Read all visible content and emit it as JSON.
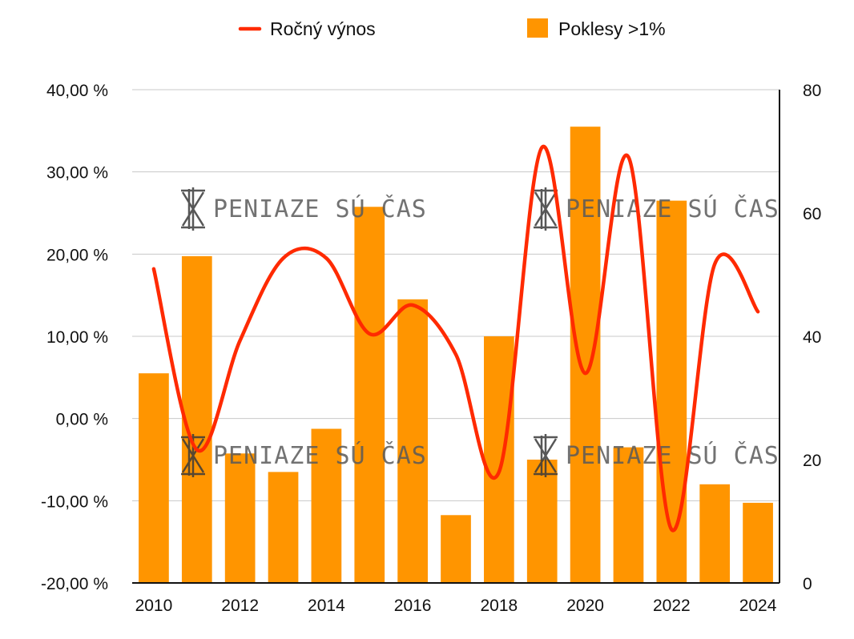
{
  "chart_data": {
    "type": "bar+line",
    "categories": [
      "2010",
      "2011",
      "2012",
      "2013",
      "2014",
      "2015",
      "2016",
      "2017",
      "2018",
      "2019",
      "2020",
      "2021",
      "2022",
      "2023",
      "2024"
    ],
    "series": [
      {
        "name": "Ročný výnos",
        "type": "line",
        "axis": "left",
        "color": "#ff2a00",
        "values": [
          18.2,
          -3.8,
          9.5,
          19.5,
          19.5,
          10.3,
          13.8,
          7.8,
          -6.5,
          33.0,
          5.5,
          31.8,
          -13.5,
          18.8,
          13.0
        ]
      },
      {
        "name": "Poklesy >1%",
        "type": "bar",
        "axis": "right",
        "color": "#ff9500",
        "values": [
          34,
          53,
          21,
          18,
          25,
          61,
          46,
          11,
          40,
          20,
          74,
          22,
          62,
          16,
          13
        ]
      }
    ],
    "y_left": {
      "ylim": [
        -20,
        40
      ],
      "ticks": [
        40,
        30,
        20,
        10,
        0,
        -10,
        -20
      ],
      "tick_labels": [
        "40,00 %",
        "30,00 %",
        "20,00 %",
        "10,00 %",
        "0,00 %",
        "-10,00 %",
        "-20,00 %"
      ]
    },
    "y_right": {
      "ylim": [
        0,
        80
      ],
      "ticks": [
        80,
        60,
        40,
        20,
        0
      ],
      "tick_labels": [
        "80",
        "60",
        "40",
        "20",
        "0"
      ]
    },
    "x_tick_labels": [
      "2010",
      "2012",
      "2014",
      "2016",
      "2018",
      "2020",
      "2022",
      "2024"
    ],
    "legend": {
      "placement": "top"
    },
    "grid": true
  },
  "watermark": {
    "text": "PENIAZE SÚ ČAS"
  }
}
